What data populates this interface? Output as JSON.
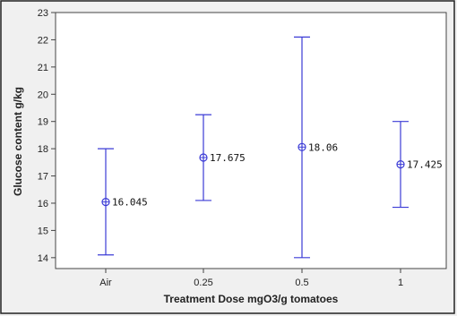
{
  "chart_data": {
    "type": "interval",
    "categories": [
      "Air",
      "0.25",
      "0.5",
      "1"
    ],
    "series": [
      {
        "mean": [
          16.045,
          17.675,
          18.06,
          17.425
        ],
        "lower": [
          14.1,
          16.1,
          14.0,
          15.85
        ],
        "upper": [
          18.0,
          19.25,
          22.1,
          19.0
        ],
        "labels": [
          "16.045",
          "17.675",
          "18.06",
          "17.425"
        ],
        "color": "#3b3bd6"
      }
    ],
    "title": "",
    "xlabel": "Treatment Dose mgO3/g tomatoes",
    "ylabel": "Glucose content g/kg",
    "ylim": [
      13.6,
      23
    ],
    "yticks": [
      14,
      15,
      16,
      17,
      18,
      19,
      20,
      21,
      22,
      23
    ],
    "grid": false,
    "legend": "none"
  }
}
